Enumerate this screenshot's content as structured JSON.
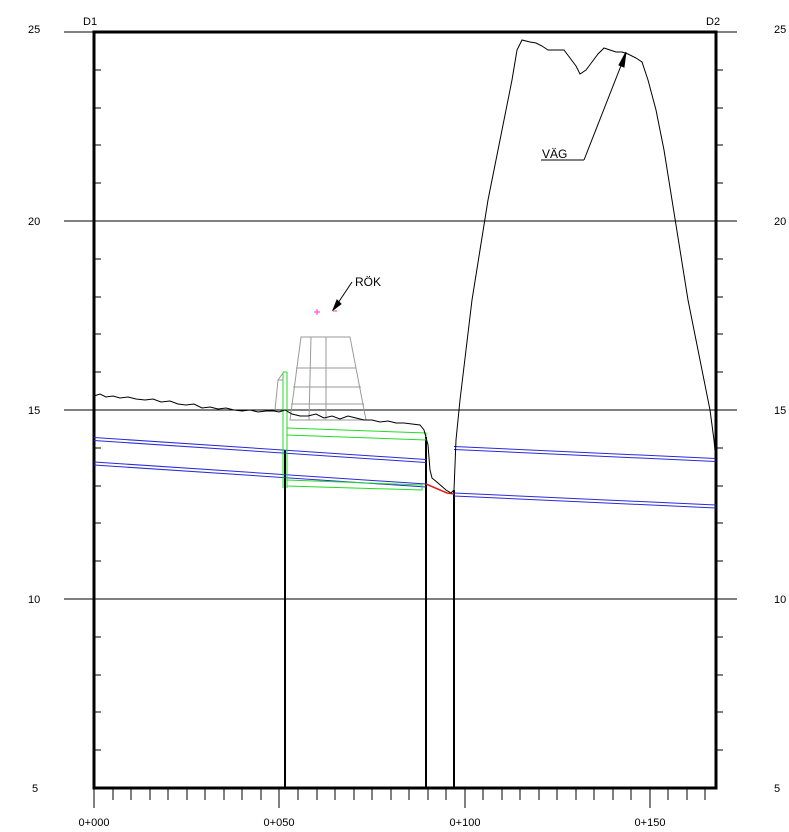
{
  "drawing": {
    "left_point_label": "D1",
    "right_point_label": "D2",
    "elevation_labels_left": [
      "25",
      "20",
      "15",
      "10",
      "5"
    ],
    "elevation_labels_right": [
      "25",
      "20",
      "15",
      "10",
      "5"
    ],
    "station_labels": [
      "0+000",
      "0+050",
      "0+100",
      "0+150"
    ],
    "elevation_range_m": [
      5,
      25
    ],
    "chainage_range_m": [
      0,
      168
    ],
    "gridlines_elevation_m": [
      10,
      15,
      20
    ],
    "callouts": [
      {
        "label": "RÖK",
        "target": "chimney (pink cross marker)"
      },
      {
        "label": "VÄG",
        "target": "road embankment crest"
      }
    ],
    "colors": {
      "frame": "#000000",
      "ground_profile": "#000000",
      "road_embankment": "#000000",
      "pipes": "#2a2ad8",
      "pipe_trench": "#22dd22",
      "chimney_structure": "#9a9a9a",
      "connecting_segment": "#e02020",
      "marker": "#ff33cc"
    }
  }
}
